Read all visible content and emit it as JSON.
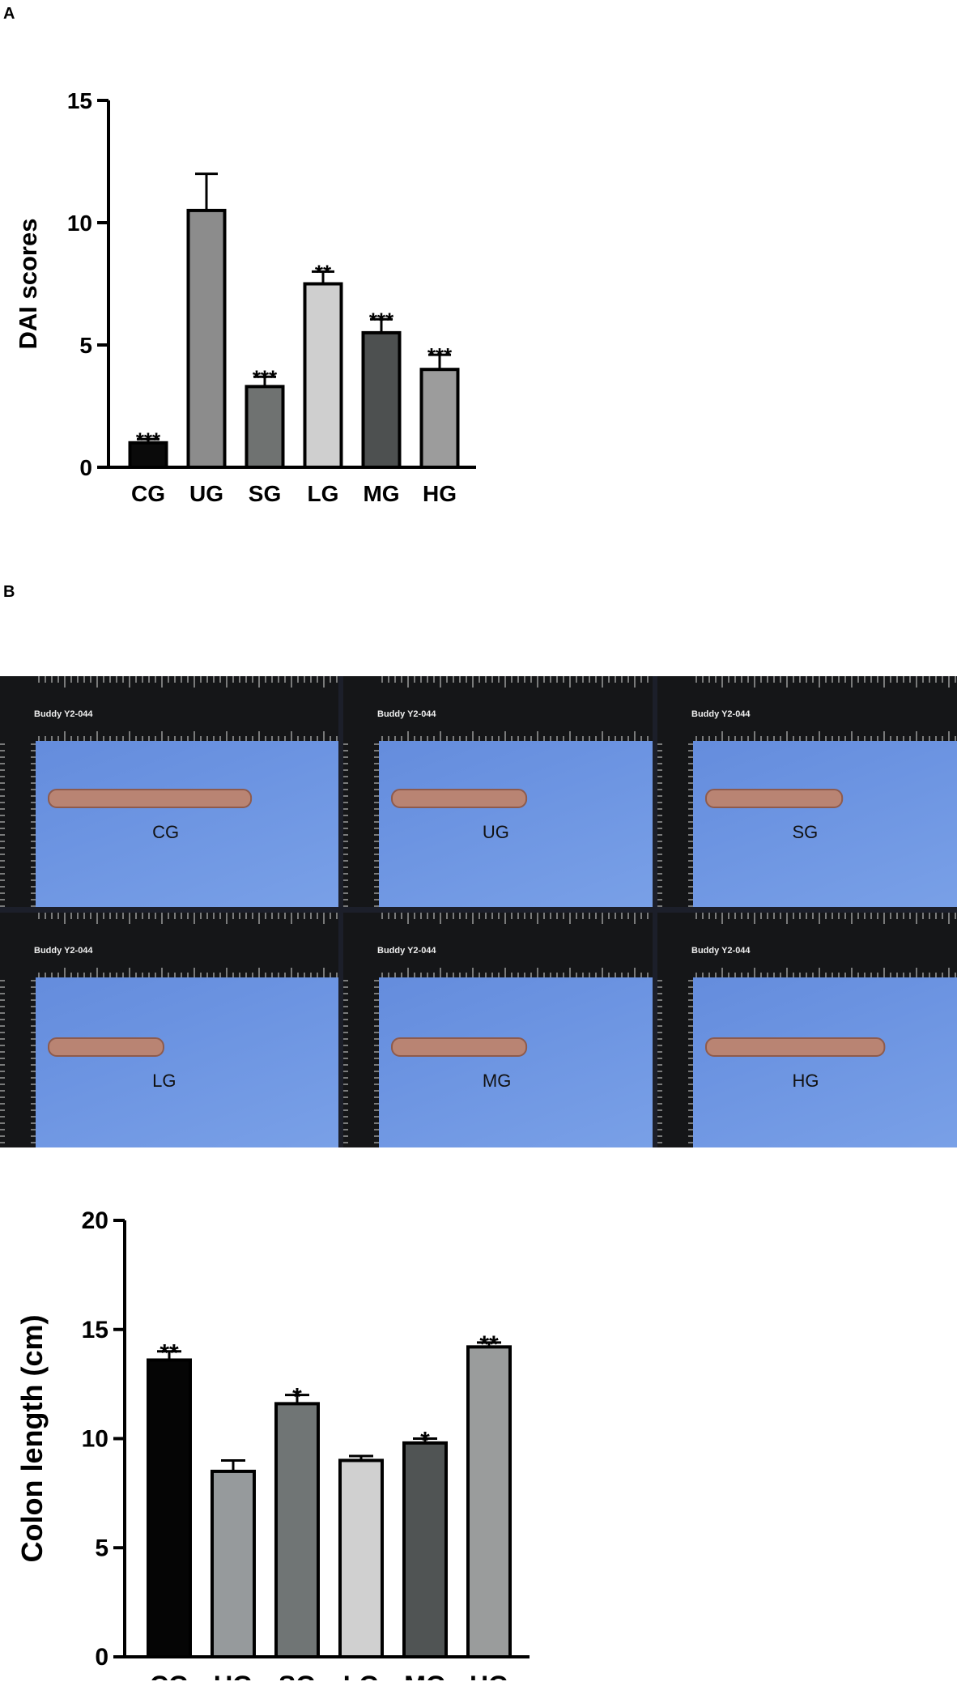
{
  "panels": {
    "a": "A",
    "b": "B"
  },
  "photos": {
    "ruler_brand": "Buddy",
    "ruler_model": "Y2-044",
    "labels": [
      "CG",
      "UG",
      "SG",
      "LG",
      "MG",
      "HG"
    ]
  },
  "chart_data": [
    {
      "type": "bar",
      "ylabel": "DAI scores",
      "xlabel": "",
      "ylim": [
        0,
        15
      ],
      "yticks": [
        "0",
        "5",
        "10",
        "15"
      ],
      "categories": [
        "CG",
        "UG",
        "SG",
        "LG",
        "MG",
        "HG"
      ],
      "values": [
        1.0,
        10.5,
        3.3,
        7.5,
        5.5,
        4.0
      ],
      "errors": [
        0.15,
        1.5,
        0.4,
        0.5,
        0.55,
        0.6
      ],
      "significance": [
        "***",
        "",
        "***",
        "**",
        "***",
        "***"
      ],
      "colors": [
        "#0a0a0a",
        "#8c8c8c",
        "#6f7271",
        "#cfcfcf",
        "#4d5050",
        "#9c9c9c"
      ]
    },
    {
      "type": "bar",
      "ylabel": "Colon length (cm)",
      "xlabel": "",
      "ylim": [
        0,
        20
      ],
      "yticks": [
        "0",
        "5",
        "10",
        "15",
        "20"
      ],
      "categories": [
        "CG",
        "UG",
        "SG",
        "LG",
        "MG",
        "HG"
      ],
      "values": [
        13.6,
        8.5,
        11.6,
        9.0,
        9.8,
        14.2
      ],
      "errors": [
        0.4,
        0.5,
        0.4,
        0.2,
        0.2,
        0.2
      ],
      "significance": [
        "**",
        "",
        "*",
        "",
        "*",
        "**"
      ],
      "colors": [
        "#050505",
        "#969a9c",
        "#707575",
        "#d0d0d0",
        "#505454",
        "#9a9c9c"
      ]
    }
  ]
}
